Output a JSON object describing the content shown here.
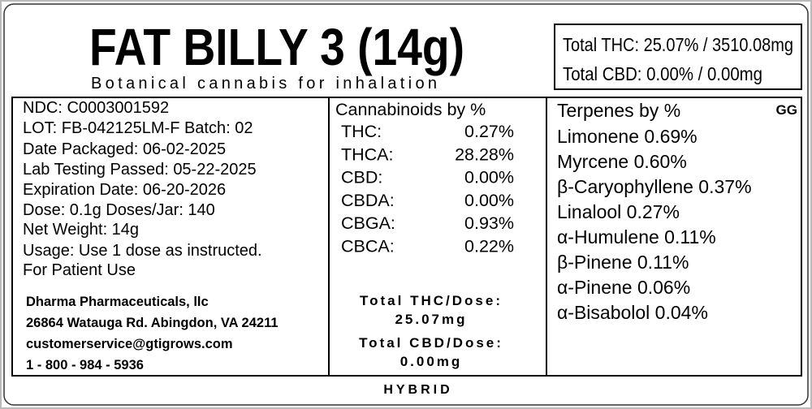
{
  "header": {
    "title": "FAT BILLY 3 (14g)",
    "subtitle": "Botanical cannabis for inhalation"
  },
  "totals_box": {
    "lines": [
      "Total THC: 25.07% / 3510.08mg",
      "Total CBD: 0.00% / 0.00mg"
    ]
  },
  "info": {
    "lines": [
      "NDC: C0003001592",
      "LOT: FB-042125LM-F   Batch: 02",
      "Date Packaged: 06-02-2025",
      "Lab Testing Passed: 05-22-2025",
      "Expiration Date: 06-20-2026",
      "Dose: 0.1g   Doses/Jar: 140",
      "Net Weight: 14g",
      "Usage: Use 1 dose as instructed.",
      "For Patient Use"
    ]
  },
  "company": {
    "lines": [
      "Dharma Pharmaceuticals, llc",
      "26864 Watauga Rd. Abingdon, VA 24211",
      "customerservice@gtigrows.com",
      "1 - 800 - 984 - 5936"
    ]
  },
  "cannabinoids": {
    "title": "Cannabinoids by %",
    "rows": [
      [
        "THC:",
        "0.27%"
      ],
      [
        "THCA:",
        "28.28%"
      ],
      [
        "CBD:",
        "0.00%"
      ],
      [
        "CBDA:",
        "0.00%"
      ],
      [
        "CBGA:",
        "0.93%"
      ],
      [
        "CBCA:",
        "0.22%"
      ]
    ]
  },
  "dose_totals": {
    "lines": [
      "Total THC/Dose:",
      "25.07mg",
      "Total CBD/Dose:",
      "0.00mg"
    ]
  },
  "terpenes": {
    "title": "Terpenes by %",
    "code": "GG",
    "items": [
      "Limonene 0.69%",
      "Myrcene 0.60%",
      "β-Caryophyllene 0.37%",
      "Linalool 0.27%",
      "α-Humulene 0.11%",
      "β-Pinene 0.11%",
      "α-Pinene 0.06%",
      "α-Bisabolol 0.04%"
    ]
  },
  "footer": {
    "type": "HYBRID"
  }
}
